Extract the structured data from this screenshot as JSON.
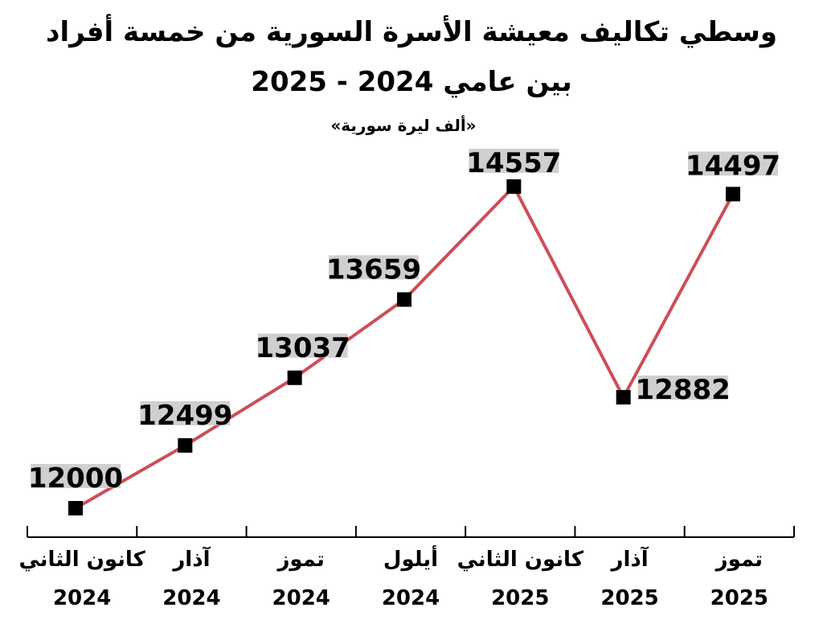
{
  "title_line1": "وسطي تكاليف معيشة الأسرة السورية من خمسة أفراد",
  "title_line2": "بين عامي 2024 - 2025",
  "unit": "«ألف ليرة سورية»",
  "chart_data": {
    "type": "line",
    "title": "وسطي تكاليف معيشة الأسرة السورية من خمسة أفراد بين عامي 2024 - 2025",
    "subtitle": "«ألف ليرة سورية»",
    "categories": [
      {
        "month": "كانون الثاني",
        "year": "2024"
      },
      {
        "month": "آذار",
        "year": "2024"
      },
      {
        "month": "تموز",
        "year": "2024"
      },
      {
        "month": "أيلول",
        "year": "2024"
      },
      {
        "month": "كانون الثاني",
        "year": "2025"
      },
      {
        "month": "آذار",
        "year": "2025"
      },
      {
        "month": "تموز",
        "year": "2025"
      }
    ],
    "values": [
      12000,
      12499,
      13037,
      13659,
      14557,
      12882,
      14497
    ],
    "ylim": [
      11800,
      14800
    ],
    "grid": false,
    "line_color": "#cc4e57",
    "marker_color": "#000000",
    "label_bg": "#cfcfcf"
  }
}
